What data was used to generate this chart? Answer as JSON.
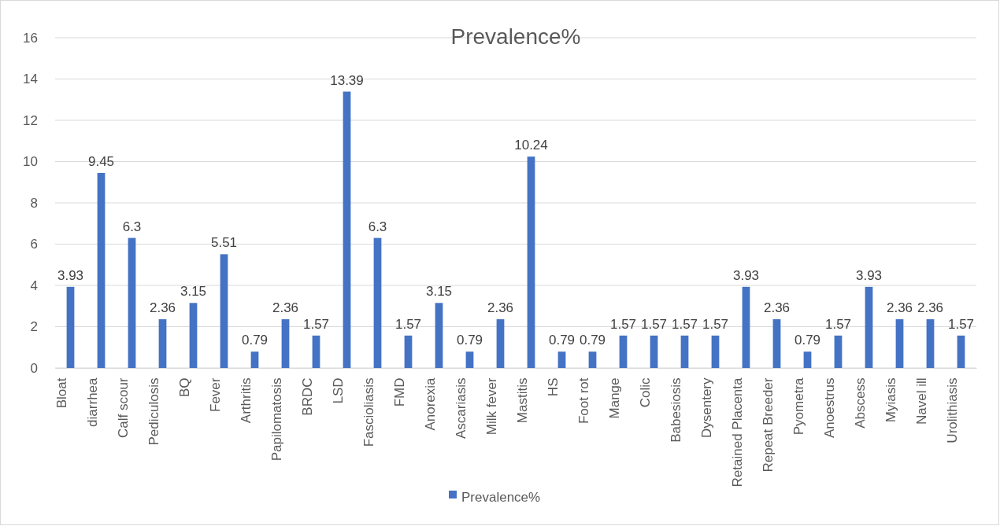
{
  "chart_data": {
    "type": "bar",
    "title": "Prevalence%",
    "categories": [
      "Bloat",
      "diarrhea",
      "Calf scour",
      "Pediculosis",
      "BQ",
      "Fever",
      "Arthritis",
      "Papilomatosis",
      "BRDC",
      "LSD",
      "Fascioliasis",
      "FMD",
      "Anorexia",
      "Ascariasis",
      "Milk fever",
      "Mastitis",
      "HS",
      "Foot rot",
      "Mange",
      "Colic",
      "Babesiosis",
      "Dysentery",
      "Retained Placenta",
      "Repeat Breeder",
      "Pyometra",
      "Anoestrus",
      "Abscess",
      "Myiasis",
      "Navel ill",
      "Urolithiasis"
    ],
    "series": [
      {
        "name": "Prevalence%",
        "color": "#4472c4",
        "values": [
          3.93,
          9.45,
          6.3,
          2.36,
          3.15,
          5.51,
          0.79,
          2.36,
          1.57,
          13.39,
          6.3,
          1.57,
          3.15,
          0.79,
          2.36,
          10.24,
          0.79,
          0.79,
          1.57,
          1.57,
          1.57,
          1.57,
          3.93,
          2.36,
          0.79,
          1.57,
          3.93,
          2.36,
          2.36,
          1.57
        ]
      }
    ],
    "ylim": [
      0,
      16
    ],
    "yticks": [
      0,
      2,
      4,
      6,
      8,
      10,
      12,
      14,
      16
    ],
    "grid": "y",
    "legend": "bottom",
    "data_labels": true
  }
}
